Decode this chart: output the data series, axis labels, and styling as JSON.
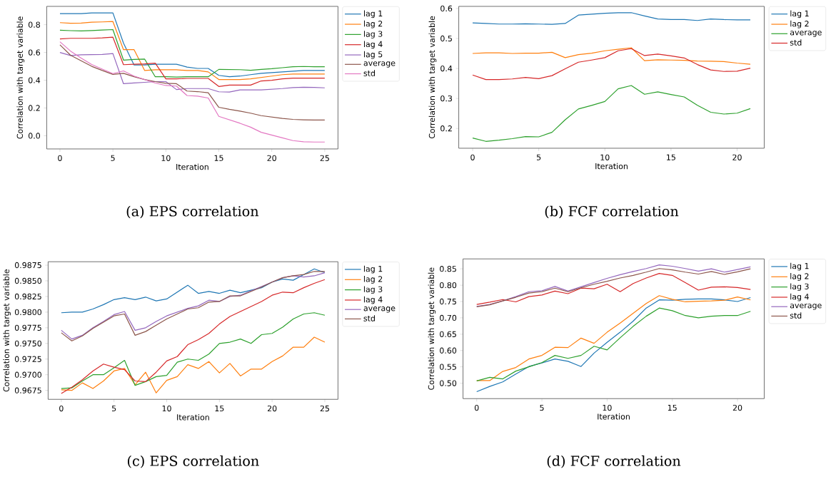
{
  "chart_data": [
    {
      "type": "line",
      "title": "(a) EPS correlation",
      "xlabel": "Iteration",
      "ylabel": "Correlation with target variable",
      "legend": "top right",
      "x": [
        0,
        1,
        2,
        3,
        4,
        5,
        6,
        7,
        8,
        9,
        10,
        11,
        12,
        13,
        14,
        15,
        16,
        17,
        18,
        19,
        20,
        21,
        22,
        23,
        24,
        25
      ],
      "xlim": [
        -1.25,
        26.25
      ],
      "ylim": [
        -0.095,
        0.932
      ],
      "xticks": [
        0,
        5,
        10,
        15,
        20,
        25
      ],
      "yticks": [
        {
          "value": 0,
          "label": "0.0"
        },
        0.2,
        0.4,
        0.6,
        0.8
      ],
      "series": [
        {
          "name": "lag 1",
          "color": "#1f77b4",
          "values": [
            0.88,
            0.88,
            0.88,
            0.885,
            0.885,
            0.885,
            0.667,
            0.51,
            0.51,
            0.515,
            0.515,
            0.515,
            0.495,
            0.485,
            0.485,
            0.435,
            0.425,
            0.43,
            0.44,
            0.45,
            0.455,
            0.46,
            0.465,
            0.47,
            0.47,
            0.47
          ]
        },
        {
          "name": "lag 2",
          "color": "#ff7f0e",
          "values": [
            0.815,
            0.81,
            0.812,
            0.818,
            0.82,
            0.823,
            0.62,
            0.62,
            0.47,
            0.475,
            0.475,
            0.475,
            0.47,
            0.47,
            0.46,
            0.405,
            0.405,
            0.405,
            0.41,
            0.42,
            0.43,
            0.44,
            0.445,
            0.445,
            0.445,
            0.445
          ]
        },
        {
          "name": "lag 3",
          "color": "#2ca02c",
          "values": [
            0.76,
            0.757,
            0.755,
            0.758,
            0.762,
            0.765,
            0.545,
            0.55,
            0.552,
            0.425,
            0.425,
            0.423,
            0.425,
            0.425,
            0.425,
            0.478,
            0.477,
            0.476,
            0.472,
            0.478,
            0.483,
            0.49,
            0.497,
            0.499,
            0.497,
            0.497
          ]
        },
        {
          "name": "lag 4",
          "color": "#d62728",
          "values": [
            0.697,
            0.702,
            0.702,
            0.702,
            0.705,
            0.71,
            0.512,
            0.515,
            0.518,
            0.523,
            0.41,
            0.41,
            0.413,
            0.413,
            0.413,
            0.355,
            0.365,
            0.365,
            0.365,
            0.395,
            0.4,
            0.41,
            0.415,
            0.415,
            0.415,
            0.415
          ]
        },
        {
          "name": "lag 5",
          "color": "#9467bd",
          "values": [
            0.6,
            0.578,
            0.583,
            0.584,
            0.586,
            0.592,
            0.375,
            0.38,
            0.385,
            0.39,
            0.39,
            0.333,
            0.34,
            0.34,
            0.34,
            0.317,
            0.315,
            0.33,
            0.33,
            0.33,
            0.335,
            0.34,
            0.347,
            0.35,
            0.348,
            0.345
          ]
        },
        {
          "name": "average",
          "color": "#8c564b",
          "values": [
            0.655,
            0.58,
            0.54,
            0.5,
            0.47,
            0.442,
            0.45,
            0.425,
            0.405,
            0.39,
            0.378,
            0.375,
            0.322,
            0.318,
            0.31,
            0.205,
            0.19,
            0.178,
            0.163,
            0.145,
            0.135,
            0.125,
            0.118,
            0.115,
            0.113,
            0.113
          ]
        },
        {
          "name": "std",
          "color": "#e377c2",
          "values": [
            0.677,
            0.61,
            0.56,
            0.513,
            0.48,
            0.448,
            0.467,
            0.43,
            0.405,
            0.38,
            0.362,
            0.358,
            0.29,
            0.285,
            0.272,
            0.14,
            0.115,
            0.09,
            0.062,
            0.025,
            0.005,
            -0.015,
            -0.035,
            -0.043,
            -0.045,
            -0.045
          ]
        }
      ]
    },
    {
      "type": "line",
      "title": "(b) FCF correlation",
      "xlabel": "Iteration",
      "ylabel": "Correlation with target variable",
      "legend": "top right",
      "x": [
        0,
        1,
        2,
        3,
        4,
        5,
        6,
        7,
        8,
        9,
        10,
        11,
        12,
        13,
        14,
        15,
        16,
        17,
        18,
        19,
        20,
        21
      ],
      "xlim": [
        -1.05,
        22.05
      ],
      "ylim": [
        0.134,
        0.607
      ],
      "xticks": [
        0,
        5,
        10,
        15,
        20
      ],
      "yticks": [
        0.2,
        0.3,
        0.4,
        0.5,
        0.6
      ],
      "series": [
        {
          "name": "lag 1",
          "color": "#1f77b4",
          "values": [
            0.552,
            0.55,
            0.548,
            0.548,
            0.549,
            0.548,
            0.547,
            0.55,
            0.578,
            0.581,
            0.584,
            0.586,
            0.586,
            0.575,
            0.565,
            0.563,
            0.563,
            0.56,
            0.565,
            0.563,
            0.562,
            0.562
          ]
        },
        {
          "name": "lag 2",
          "color": "#ff7f0e",
          "values": [
            0.45,
            0.452,
            0.452,
            0.45,
            0.451,
            0.451,
            0.454,
            0.436,
            0.446,
            0.451,
            0.459,
            0.464,
            0.469,
            0.426,
            0.429,
            0.428,
            0.427,
            0.425,
            0.424,
            0.423,
            0.418,
            0.414
          ]
        },
        {
          "name": "average",
          "color": "#2ca02c",
          "values": [
            0.168,
            0.157,
            0.161,
            0.166,
            0.173,
            0.172,
            0.187,
            0.229,
            0.265,
            0.277,
            0.29,
            0.332,
            0.343,
            0.314,
            0.322,
            0.313,
            0.305,
            0.277,
            0.254,
            0.248,
            0.251,
            0.266
          ]
        },
        {
          "name": "std",
          "color": "#d62728",
          "values": [
            0.378,
            0.363,
            0.363,
            0.365,
            0.37,
            0.366,
            0.376,
            0.399,
            0.421,
            0.428,
            0.436,
            0.459,
            0.466,
            0.443,
            0.448,
            0.442,
            0.435,
            0.413,
            0.395,
            0.39,
            0.391,
            0.401
          ]
        }
      ]
    },
    {
      "type": "line",
      "title": "(c) EPS correlation",
      "xlabel": "Iteration",
      "ylabel": "Correlation with target variable",
      "legend": "top right",
      "x": [
        0,
        1,
        2,
        3,
        4,
        5,
        6,
        7,
        8,
        9,
        10,
        11,
        12,
        13,
        14,
        15,
        16,
        17,
        18,
        19,
        20,
        21,
        22,
        23,
        24,
        25
      ],
      "xlim": [
        -1.25,
        26.25
      ],
      "ylim": [
        0.96607,
        0.98805
      ],
      "xticks": [
        0,
        5,
        10,
        15,
        20,
        25
      ],
      "yticks": [
        0.9675,
        {
          "value": 0.97,
          "label": "0.9700"
        },
        0.9725,
        {
          "value": 0.975,
          "label": "0.9750"
        },
        0.9775,
        {
          "value": 0.98,
          "label": "0.9800"
        },
        0.9825,
        {
          "value": 0.985,
          "label": "0.9850"
        },
        0.9875
      ],
      "series": [
        {
          "name": "lag 1",
          "color": "#1f77b4",
          "values": [
            0.9799,
            0.98,
            0.98,
            0.9805,
            0.9812,
            0.982,
            0.9823,
            0.982,
            0.9824,
            0.9818,
            0.9821,
            0.9832,
            0.9843,
            0.983,
            0.9833,
            0.983,
            0.9835,
            0.9831,
            0.9835,
            0.9839,
            0.9848,
            0.9853,
            0.9851,
            0.986,
            0.9869,
            0.9863
          ]
        },
        {
          "name": "lag 2",
          "color": "#ff7f0e",
          "values": [
            0.9676,
            0.9675,
            0.9687,
            0.9678,
            0.969,
            0.9706,
            0.971,
            0.9684,
            0.9704,
            0.9671,
            0.9691,
            0.9697,
            0.9716,
            0.971,
            0.9721,
            0.9703,
            0.9718,
            0.9698,
            0.9709,
            0.9709,
            0.9721,
            0.973,
            0.9744,
            0.9744,
            0.976,
            0.9752
          ]
        },
        {
          "name": "lag 3",
          "color": "#2ca02c",
          "values": [
            0.9678,
            0.9679,
            0.969,
            0.97,
            0.97,
            0.9711,
            0.9723,
            0.9683,
            0.9689,
            0.9697,
            0.9699,
            0.972,
            0.9725,
            0.9723,
            0.9733,
            0.975,
            0.9752,
            0.9757,
            0.975,
            0.9764,
            0.9766,
            0.9776,
            0.9789,
            0.9797,
            0.9799,
            0.9795
          ]
        },
        {
          "name": "lag 4",
          "color": "#d62728",
          "values": [
            0.967,
            0.968,
            0.9692,
            0.9706,
            0.9717,
            0.9712,
            0.9708,
            0.969,
            0.9689,
            0.9704,
            0.9722,
            0.9729,
            0.9748,
            0.9756,
            0.9766,
            0.9781,
            0.9793,
            0.9801,
            0.9809,
            0.9817,
            0.9827,
            0.9832,
            0.9831,
            0.9839,
            0.9846,
            0.9852
          ]
        },
        {
          "name": "average",
          "color": "#9467bd",
          "values": [
            0.9771,
            0.9757,
            0.9763,
            0.9775,
            0.9785,
            0.9796,
            0.9801,
            0.9771,
            0.9775,
            0.9785,
            0.9794,
            0.98,
            0.9806,
            0.981,
            0.9819,
            0.9817,
            0.9825,
            0.9827,
            0.9834,
            0.9841,
            0.9848,
            0.9855,
            0.9858,
            0.9856,
            0.9858,
            0.9863
          ]
        },
        {
          "name": "std",
          "color": "#8c564b",
          "values": [
            0.9767,
            0.9754,
            0.9762,
            0.9774,
            0.9784,
            0.9794,
            0.9797,
            0.9763,
            0.9769,
            0.9779,
            0.9789,
            0.9797,
            0.9805,
            0.9807,
            0.9816,
            0.9817,
            0.9826,
            0.9826,
            0.9833,
            0.984,
            0.9848,
            0.9855,
            0.9858,
            0.986,
            0.9865,
            0.9865
          ]
        }
      ]
    },
    {
      "type": "line",
      "title": "(d) FCF correlation",
      "xlabel": "Iteration",
      "ylabel": "Correlation with target variable",
      "legend": "top right",
      "x": [
        0,
        1,
        2,
        3,
        4,
        5,
        6,
        7,
        8,
        9,
        10,
        11,
        12,
        13,
        14,
        15,
        16,
        17,
        18,
        19,
        20,
        21
      ],
      "xlim": [
        -1.05,
        22.05
      ],
      "ylim": [
        0.4527,
        0.8805
      ],
      "xticks": [
        0,
        5,
        10,
        15,
        20
      ],
      "yticks": [
        {
          "value": 0.5,
          "label": "0.50"
        },
        0.55,
        {
          "value": 0.6,
          "label": "0.60"
        },
        0.65,
        {
          "value": 0.7,
          "label": "0.70"
        },
        0.75,
        {
          "value": 0.8,
          "label": "0.80"
        },
        0.85
      ],
      "series": [
        {
          "name": "lag 1",
          "color": "#1f77b4",
          "values": [
            0.474,
            0.49,
            0.504,
            0.528,
            0.551,
            0.562,
            0.574,
            0.567,
            0.551,
            0.592,
            0.625,
            0.656,
            0.69,
            0.73,
            0.755,
            0.754,
            0.757,
            0.758,
            0.758,
            0.755,
            0.75,
            0.762
          ]
        },
        {
          "name": "lag 2",
          "color": "#ff7f0e",
          "values": [
            0.508,
            0.508,
            0.536,
            0.548,
            0.574,
            0.585,
            0.61,
            0.609,
            0.638,
            0.622,
            0.656,
            0.684,
            0.714,
            0.744,
            0.768,
            0.757,
            0.749,
            0.751,
            0.752,
            0.754,
            0.764,
            0.755
          ]
        },
        {
          "name": "lag 3",
          "color": "#2ca02c",
          "values": [
            0.507,
            0.518,
            0.513,
            0.537,
            0.55,
            0.563,
            0.585,
            0.576,
            0.585,
            0.613,
            0.602,
            0.639,
            0.674,
            0.705,
            0.73,
            0.722,
            0.707,
            0.7,
            0.705,
            0.707,
            0.707,
            0.72
          ]
        },
        {
          "name": "lag 4",
          "color": "#d62728",
          "values": [
            0.741,
            0.748,
            0.756,
            0.749,
            0.765,
            0.77,
            0.782,
            0.774,
            0.791,
            0.789,
            0.803,
            0.78,
            0.805,
            0.822,
            0.836,
            0.83,
            0.808,
            0.785,
            0.794,
            0.795,
            0.793,
            0.787
          ]
        },
        {
          "name": "average",
          "color": "#9467bd",
          "values": [
            0.735,
            0.741,
            0.752,
            0.765,
            0.78,
            0.783,
            0.796,
            0.782,
            0.795,
            0.808,
            0.821,
            0.832,
            0.842,
            0.851,
            0.862,
            0.858,
            0.851,
            0.843,
            0.85,
            0.84,
            0.848,
            0.856
          ]
        },
        {
          "name": "std",
          "color": "#8c564b",
          "values": [
            0.734,
            0.74,
            0.752,
            0.763,
            0.776,
            0.78,
            0.791,
            0.78,
            0.792,
            0.803,
            0.812,
            0.822,
            0.83,
            0.84,
            0.851,
            0.847,
            0.84,
            0.834,
            0.842,
            0.833,
            0.841,
            0.85
          ]
        }
      ]
    }
  ]
}
